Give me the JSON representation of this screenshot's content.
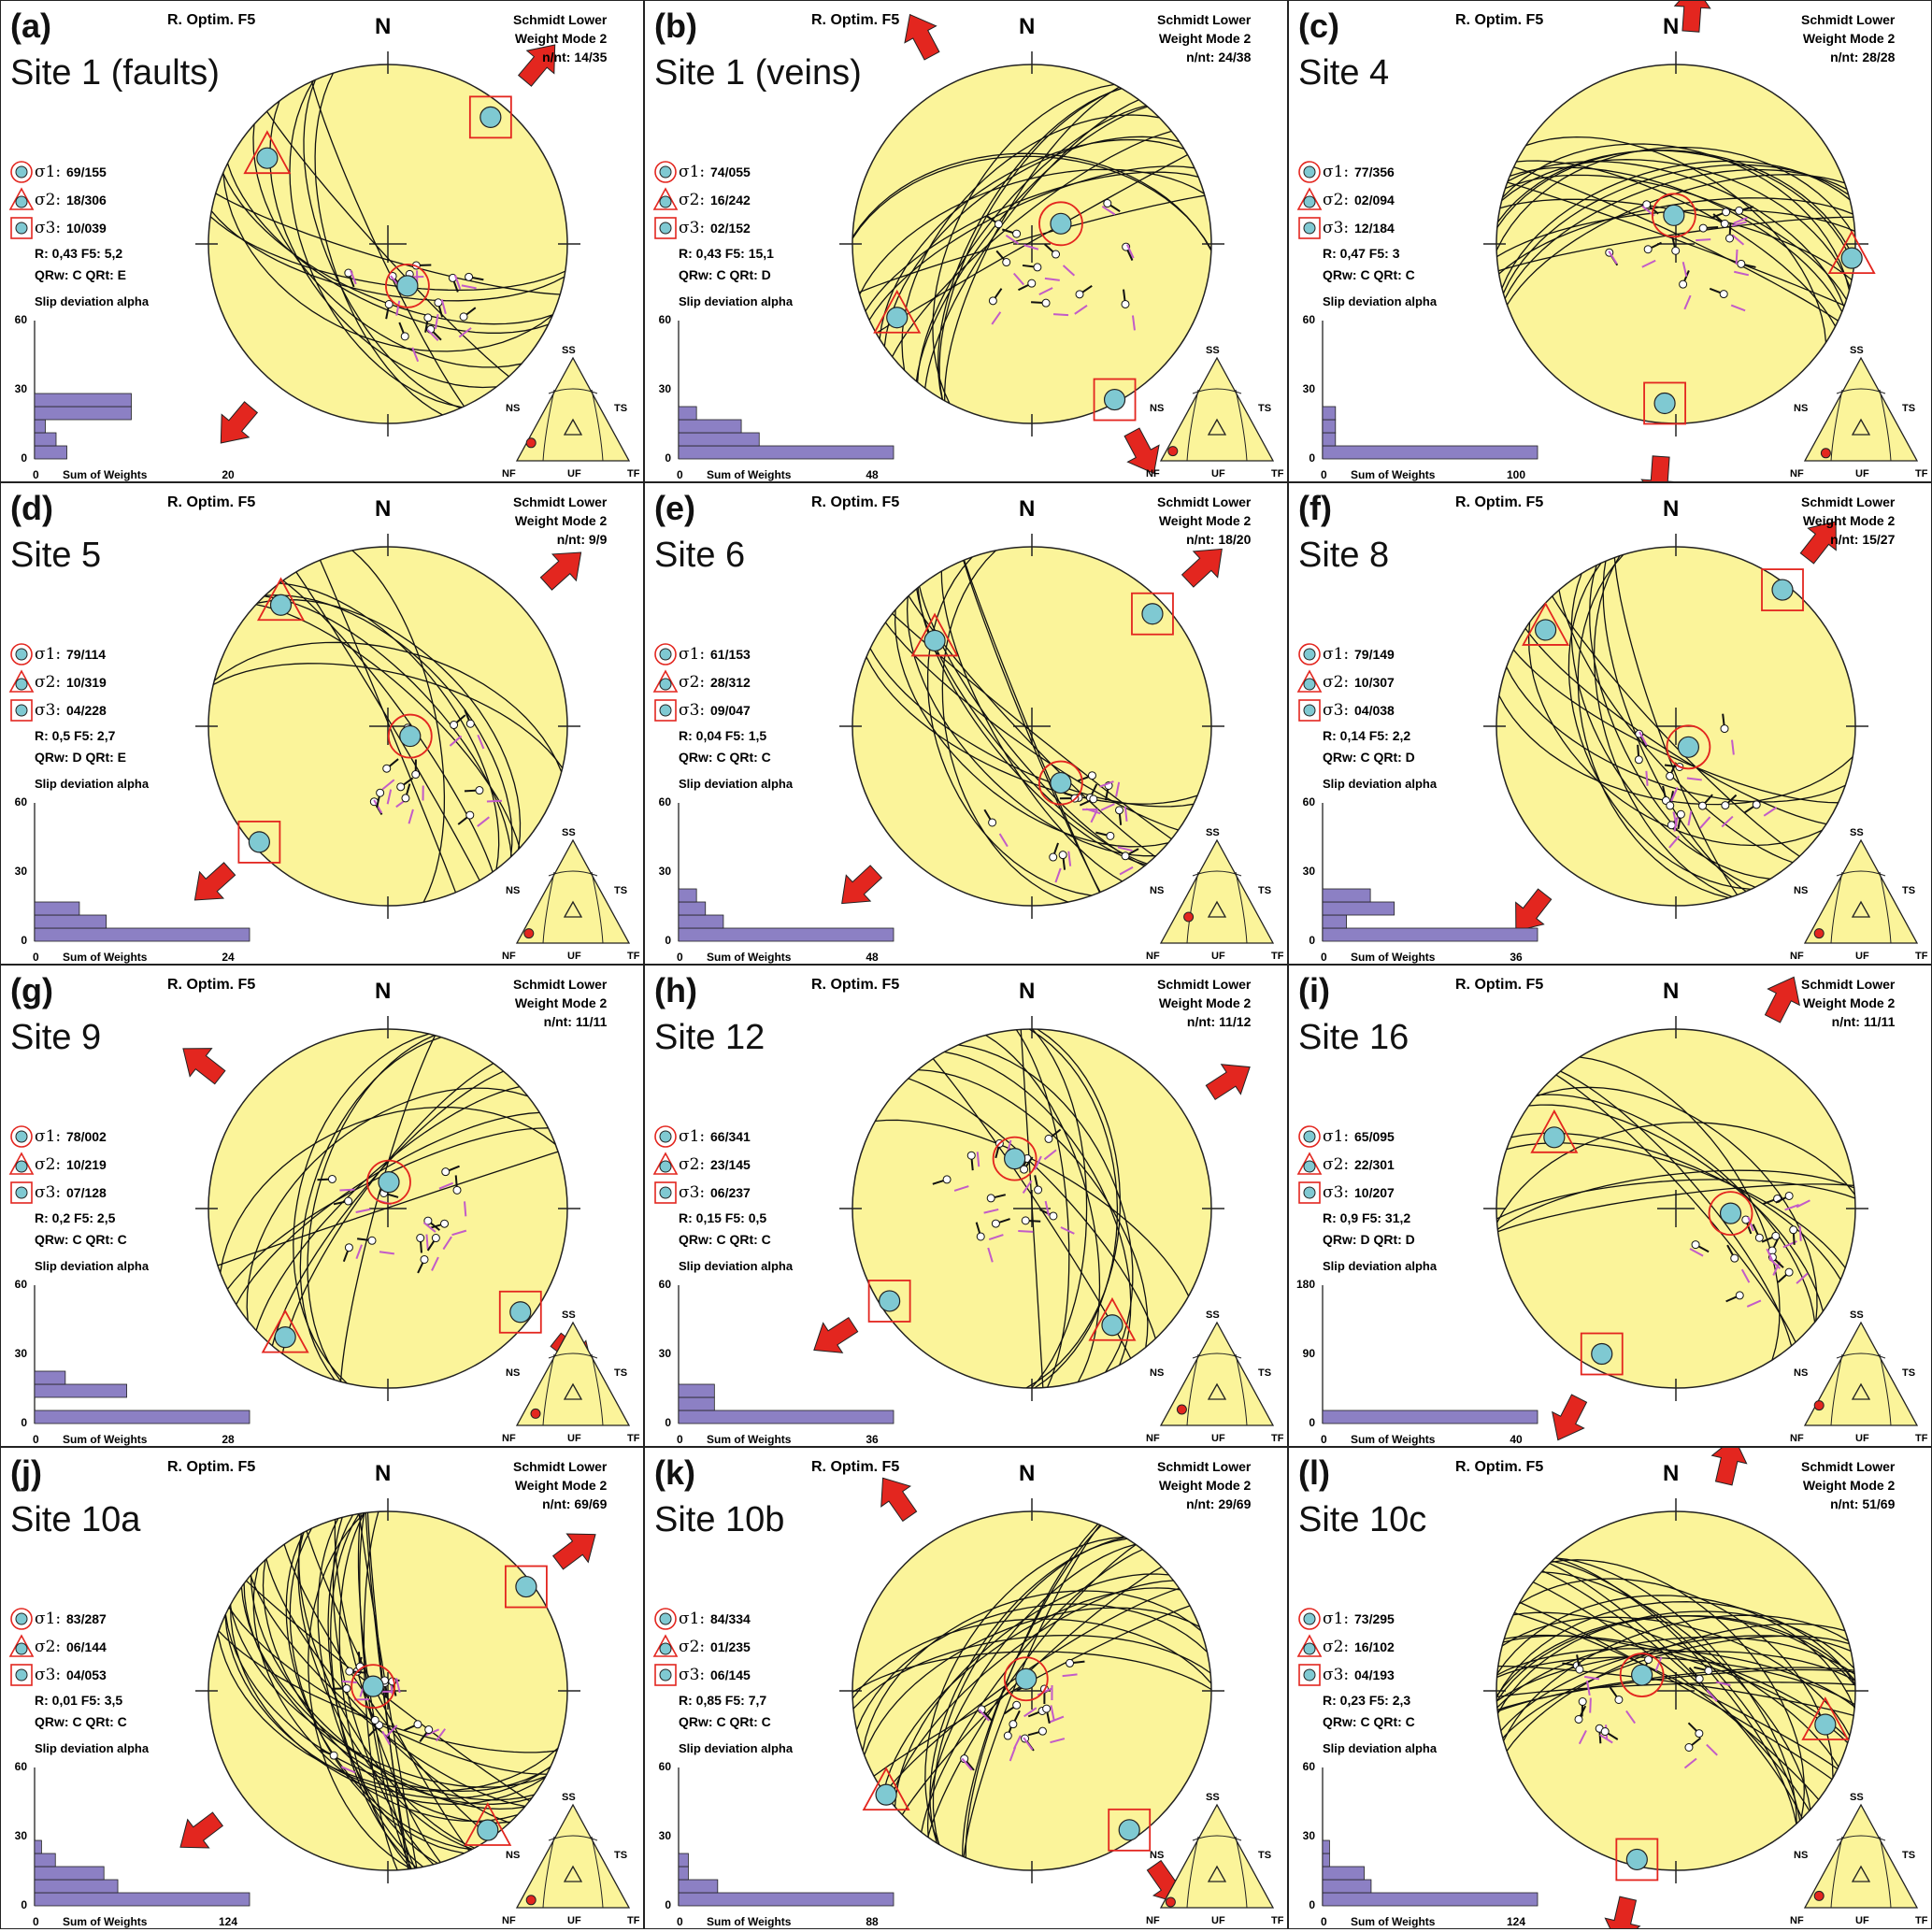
{
  "common": {
    "method": "R. Optim. F5",
    "north": "N",
    "schmidt_line1": "Schmidt Lower",
    "schmidt_line2": "Weight Mode 2",
    "s1_label": "σ1:",
    "s2_label": "σ2:",
    "s3_label": "σ3:",
    "slip_title": "Slip deviation alpha",
    "sum_label": "Sum of Weights",
    "x_zero": "0",
    "y_zero": "0",
    "tri_labels": {
      "ss": "SS",
      "ns": "NS",
      "ts": "TS",
      "nf": "NF",
      "uf": "UF",
      "tf": "TF"
    }
  },
  "colors": {
    "stereonet_fill": "#fbf49a",
    "pole_fill": "#7fc9d2",
    "marker_stroke": "#e3261f",
    "red_arrow": "#e3261f",
    "green_arrow": "#57a83a",
    "histogram_bar": "#8c80c4",
    "slip_arrow": "#c25bc8"
  },
  "panels": [
    {
      "tag": "(a)",
      "site": "Site 1 (faults)",
      "nnt": "n/nt: 14/35",
      "s1": "69/155",
      "s2": "18/306",
      "s3": "10/039",
      "R": "R: 0,43 F5: 5,2",
      "Q": "QRw: C QRt: E",
      "y_ticks": [
        "60",
        "30"
      ],
      "x_max": "20",
      "hist": [
        3,
        2,
        1,
        9,
        9
      ],
      "hist_max": 20,
      "arrow_color": "red",
      "shmax_az": 40,
      "sigma": {
        "s1": [
          155,
          69
        ],
        "s2": [
          306,
          18
        ],
        "s3": [
          39,
          10
        ]
      },
      "tri_dot": [
        0.06,
        0.12
      ]
    },
    {
      "tag": "(b)",
      "site": "Site 1 (veins)",
      "nnt": "n/nt: 24/38",
      "s1": "74/055",
      "s2": "16/242",
      "s3": "02/152",
      "R": "R: 0,43 F5: 15,1",
      "Q": "QRw: C QRt: D",
      "y_ticks": [
        "60",
        "30"
      ],
      "x_max": "48",
      "hist": [
        48,
        18,
        14,
        4,
        0
      ],
      "hist_max": 48,
      "arrow_color": "red",
      "shmax_az": 152,
      "sigma": {
        "s1": [
          55,
          74
        ],
        "s2": [
          242,
          16
        ],
        "s3": [
          152,
          2
        ]
      },
      "tri_dot": [
        0.04,
        0.04
      ]
    },
    {
      "tag": "(c)",
      "site": "Site 4",
      "nnt": "n/nt: 28/28",
      "s1": "77/356",
      "s2": "02/094",
      "s3": "12/184",
      "R": "R: 0,47 F5: 3",
      "Q": "QRw: C QRt: C",
      "y_ticks": [
        "60",
        "30"
      ],
      "x_max": "100",
      "hist": [
        100,
        6,
        6,
        6,
        0
      ],
      "hist_max": 100,
      "arrow_color": "red",
      "shmax_az": 4,
      "sigma": {
        "s1": [
          356,
          77
        ],
        "s2": [
          94,
          2
        ],
        "s3": [
          184,
          12
        ]
      },
      "tri_dot": [
        0.12,
        0.02
      ]
    },
    {
      "tag": "(d)",
      "site": "Site 5",
      "nnt": "n/nt: 9/9",
      "s1": "79/114",
      "s2": "10/319",
      "s3": "04/228",
      "R": "R: 0,5 F5: 2,7",
      "Q": "QRw: D QRt: E",
      "y_ticks": [
        "60",
        "30"
      ],
      "x_max": "24",
      "hist": [
        24,
        8,
        5,
        0,
        0
      ],
      "hist_max": 24,
      "arrow_color": "red",
      "shmax_az": 48,
      "sigma": {
        "s1": [
          114,
          79
        ],
        "s2": [
          319,
          10
        ],
        "s3": [
          228,
          4
        ]
      },
      "tri_dot": [
        0.04,
        0.04
      ]
    },
    {
      "tag": "(e)",
      "site": "Site 6",
      "nnt": "n/nt: 18/20",
      "s1": "61/153",
      "s2": "28/312",
      "s3": "09/047",
      "R": "R: 0,04 F5: 1,5",
      "Q": "QRw: C QRt: C",
      "y_ticks": [
        "60",
        "30"
      ],
      "x_max": "48",
      "hist": [
        48,
        10,
        6,
        4,
        0
      ],
      "hist_max": 48,
      "arrow_color": "red",
      "shmax_az": 47,
      "sigma": {
        "s1": [
          153,
          61
        ],
        "s2": [
          312,
          28
        ],
        "s3": [
          47,
          9
        ]
      },
      "tri_dot": [
        0.18,
        0.2
      ]
    },
    {
      "tag": "(f)",
      "site": "Site 8",
      "nnt": "n/nt: 15/27",
      "s1": "79/149",
      "s2": "10/307",
      "s3": "04/038",
      "R": "R: 0,14 F5: 2,2",
      "Q": "QRw: C QRt: D",
      "y_ticks": [
        "60",
        "30"
      ],
      "x_max": "36",
      "hist": [
        36,
        4,
        12,
        8,
        0
      ],
      "hist_max": 36,
      "arrow_color": "red",
      "shmax_az": 38,
      "sigma": {
        "s1": [
          149,
          79
        ],
        "s2": [
          307,
          10
        ],
        "s3": [
          38,
          4
        ]
      },
      "tri_dot": [
        0.06,
        0.04
      ]
    },
    {
      "tag": "(g)",
      "site": "Site 9",
      "nnt": "n/nt: 11/11",
      "s1": "78/002",
      "s2": "10/219",
      "s3": "07/128",
      "R": "R: 0,2 F5: 2,5",
      "Q": "QRw: C QRt: C",
      "y_ticks": [
        "60",
        "30"
      ],
      "x_max": "28",
      "hist": [
        28,
        0,
        12,
        4,
        0
      ],
      "hist_max": 28,
      "arrow_color": "red",
      "shmax_az": 128,
      "sigma": {
        "s1": [
          2,
          78
        ],
        "s2": [
          219,
          10
        ],
        "s3": [
          128,
          7
        ]
      },
      "tri_dot": [
        0.1,
        0.06
      ]
    },
    {
      "tag": "(h)",
      "site": "Site 12",
      "nnt": "n/nt: 11/12",
      "s1": "66/341",
      "s2": "23/145",
      "s3": "06/237",
      "R": "R: 0,15 F5: 0,5",
      "Q": "QRw: C QRt: C",
      "y_ticks": [
        "60",
        "30"
      ],
      "x_max": "36",
      "hist": [
        36,
        6,
        6,
        0,
        0
      ],
      "hist_max": 36,
      "arrow_color": "red",
      "shmax_az": 57,
      "sigma": {
        "s1": [
          341,
          66
        ],
        "s2": [
          145,
          23
        ],
        "s3": [
          237,
          6
        ]
      },
      "tri_dot": [
        0.12,
        0.1
      ]
    },
    {
      "tag": "(i)",
      "site": "Site 16",
      "nnt": "n/nt: 11/11",
      "s1": "65/095",
      "s2": "22/301",
      "s3": "10/207",
      "R": "R: 0,9 F5: 31,2",
      "Q": "QRw: D QRt: D",
      "y_ticks": [
        "180",
        "90"
      ],
      "x_max": "40",
      "hist": [
        40,
        0,
        0,
        0,
        0
      ],
      "hist_max": 40,
      "arrow_color": "red",
      "shmax_az": 27,
      "sigma": {
        "s1": [
          95,
          65
        ],
        "s2": [
          301,
          22
        ],
        "s3": [
          207,
          10
        ]
      },
      "tri_dot": [
        0.06,
        0.14
      ]
    },
    {
      "tag": "(j)",
      "site": "Site 10a",
      "nnt": "n/nt: 69/69",
      "s1": "83/287",
      "s2": "06/144",
      "s3": "04/053",
      "R": "R: 0,01 F5: 3,5",
      "Q": "QRw: C QRt: C",
      "y_ticks": [
        "60",
        "30"
      ],
      "x_max": "124",
      "hist": [
        124,
        48,
        40,
        12,
        4
      ],
      "hist_max": 124,
      "arrow_color": "red",
      "shmax_az": 53,
      "sigma": {
        "s1": [
          287,
          83
        ],
        "s2": [
          144,
          6
        ],
        "s3": [
          53,
          4
        ]
      },
      "tri_dot": [
        0.06,
        0.02
      ]
    },
    {
      "tag": "(k)",
      "site": "Site 10b",
      "nnt": "n/nt: 29/69",
      "s1": "84/334",
      "s2": "01/235",
      "s3": "06/145",
      "R": "R: 0,85 F5: 7,7",
      "Q": "QRw: C QRt: C",
      "y_ticks": [
        "60",
        "30"
      ],
      "x_max": "88",
      "hist": [
        88,
        16,
        4,
        4,
        0
      ],
      "hist_max": 88,
      "arrow_color": "red",
      "shmax_az": 145,
      "sigma": {
        "s1": [
          334,
          84
        ],
        "s2": [
          235,
          1
        ],
        "s3": [
          145,
          6
        ]
      },
      "tri_dot": [
        0.02,
        0.0
      ]
    },
    {
      "tag": "(l)",
      "site": "Site 10c",
      "nnt": "n/nt: 51/69",
      "s1": "73/295",
      "s2": "16/102",
      "s3": "04/193",
      "R": "R: 0,23 F5: 2,3",
      "Q": "QRw: C QRt: C",
      "y_ticks": [
        "60",
        "30"
      ],
      "x_max": "124",
      "hist": [
        124,
        28,
        24,
        4,
        4
      ],
      "hist_max": 124,
      "arrow_color": "red",
      "shmax_az": 13,
      "sigma": {
        "s1": [
          295,
          73
        ],
        "s2": [
          102,
          16
        ],
        "s3": [
          193,
          4
        ]
      },
      "tri_dot": [
        0.06,
        0.06
      ]
    }
  ]
}
